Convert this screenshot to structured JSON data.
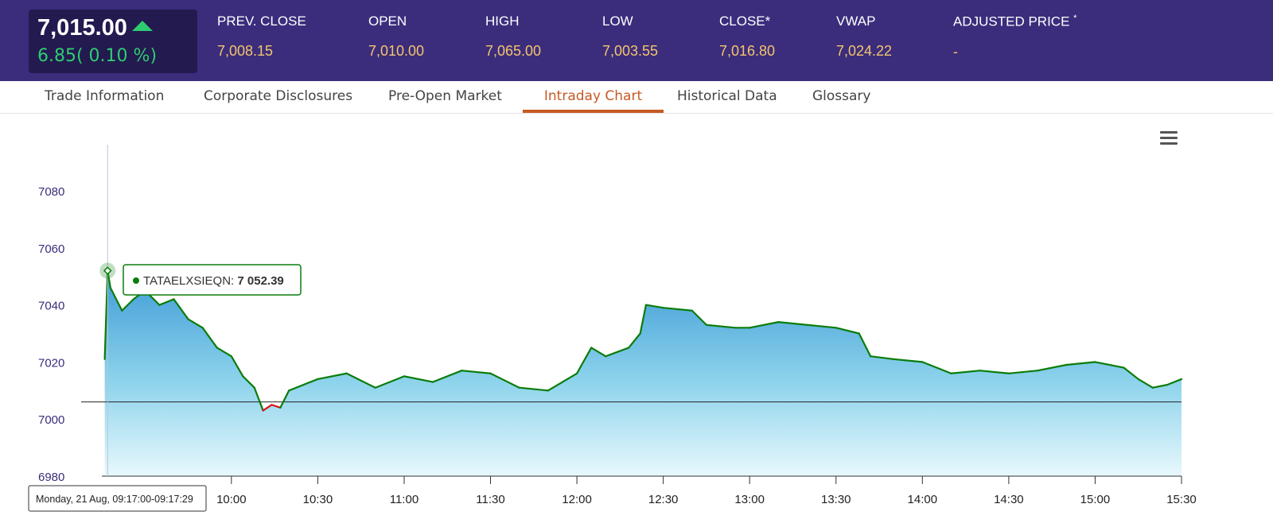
{
  "header": {
    "last_price": "7,015.00",
    "change": "6.85( 0.10 %)",
    "stats": [
      {
        "label": "PREV. CLOSE",
        "value": "7,008.15"
      },
      {
        "label": "OPEN",
        "value": "7,010.00"
      },
      {
        "label": "HIGH",
        "value": "7,065.00"
      },
      {
        "label": "LOW",
        "value": "7,003.55"
      },
      {
        "label": "CLOSE*",
        "value": "7,016.80"
      },
      {
        "label": "VWAP",
        "value": "7,024.22"
      },
      {
        "label": "ADJUSTED PRICE",
        "sup": "*",
        "value": "-"
      }
    ]
  },
  "tabs": [
    {
      "label": "Trade Information"
    },
    {
      "label": "Corporate Disclosures"
    },
    {
      "label": "Pre-Open Market"
    },
    {
      "label": "Intraday Chart",
      "active": true
    },
    {
      "label": "Historical Data"
    },
    {
      "label": "Glossary"
    }
  ],
  "menu_icon": "hamburger-menu-icon",
  "colors": {
    "header_bg": "#3b2d7c",
    "price_box_bg": "#231a4f",
    "up": "#2ecc71",
    "value": "#f4c46c",
    "accent": "#c65a24",
    "line_up": "#0a7d0a",
    "line_down": "#e01010"
  },
  "chart_data": {
    "type": "area",
    "series_name": "TATAELXSIEQN",
    "y_ticks": [
      "7080",
      "7060",
      "7040",
      "7020",
      "7000",
      "6980"
    ],
    "x_ticks": [
      "10:00",
      "10:30",
      "11:00",
      "11:30",
      "12:00",
      "12:30",
      "13:00",
      "13:30",
      "14:00",
      "14:30",
      "15:00",
      "15:30"
    ],
    "ylim": [
      6980,
      7080
    ],
    "xlim": [
      "09:15",
      "15:30"
    ],
    "baseline": 7006,
    "tooltip": {
      "name": "TATAELXSIEQN",
      "value": "7 052.39"
    },
    "crosshair_label": "Monday, 21 Aug, 09:17:00-09:17:29",
    "points": [
      [
        "09:16",
        7021
      ],
      [
        "09:17",
        7052
      ],
      [
        "09:18",
        7046
      ],
      [
        "09:22",
        7038
      ],
      [
        "09:26",
        7042
      ],
      [
        "09:30",
        7045
      ],
      [
        "09:35",
        7040
      ],
      [
        "09:40",
        7042
      ],
      [
        "09:45",
        7035
      ],
      [
        "09:50",
        7032
      ],
      [
        "09:55",
        7025
      ],
      [
        "10:00",
        7022
      ],
      [
        "10:04",
        7015
      ],
      [
        "10:08",
        7011
      ],
      [
        "10:11",
        7003
      ],
      [
        "10:14",
        7005
      ],
      [
        "10:17",
        7004
      ],
      [
        "10:20",
        7010
      ],
      [
        "10:30",
        7014
      ],
      [
        "10:40",
        7016
      ],
      [
        "10:50",
        7011
      ],
      [
        "11:00",
        7015
      ],
      [
        "11:10",
        7013
      ],
      [
        "11:20",
        7017
      ],
      [
        "11:30",
        7016
      ],
      [
        "11:40",
        7011
      ],
      [
        "11:50",
        7010
      ],
      [
        "12:00",
        7016
      ],
      [
        "12:05",
        7025
      ],
      [
        "12:10",
        7022
      ],
      [
        "12:18",
        7025
      ],
      [
        "12:22",
        7030
      ],
      [
        "12:24",
        7040
      ],
      [
        "12:30",
        7039
      ],
      [
        "12:40",
        7038
      ],
      [
        "12:45",
        7033
      ],
      [
        "12:55",
        7032
      ],
      [
        "13:00",
        7032
      ],
      [
        "13:10",
        7034
      ],
      [
        "13:20",
        7033
      ],
      [
        "13:30",
        7032
      ],
      [
        "13:38",
        7030
      ],
      [
        "13:42",
        7022
      ],
      [
        "13:50",
        7021
      ],
      [
        "14:00",
        7020
      ],
      [
        "14:10",
        7016
      ],
      [
        "14:20",
        7017
      ],
      [
        "14:30",
        7016
      ],
      [
        "14:40",
        7017
      ],
      [
        "14:50",
        7019
      ],
      [
        "15:00",
        7020
      ],
      [
        "15:10",
        7018
      ],
      [
        "15:15",
        7014
      ],
      [
        "15:20",
        7011
      ],
      [
        "15:25",
        7012
      ],
      [
        "15:30",
        7014
      ]
    ],
    "x_label": "",
    "y_label": ""
  }
}
